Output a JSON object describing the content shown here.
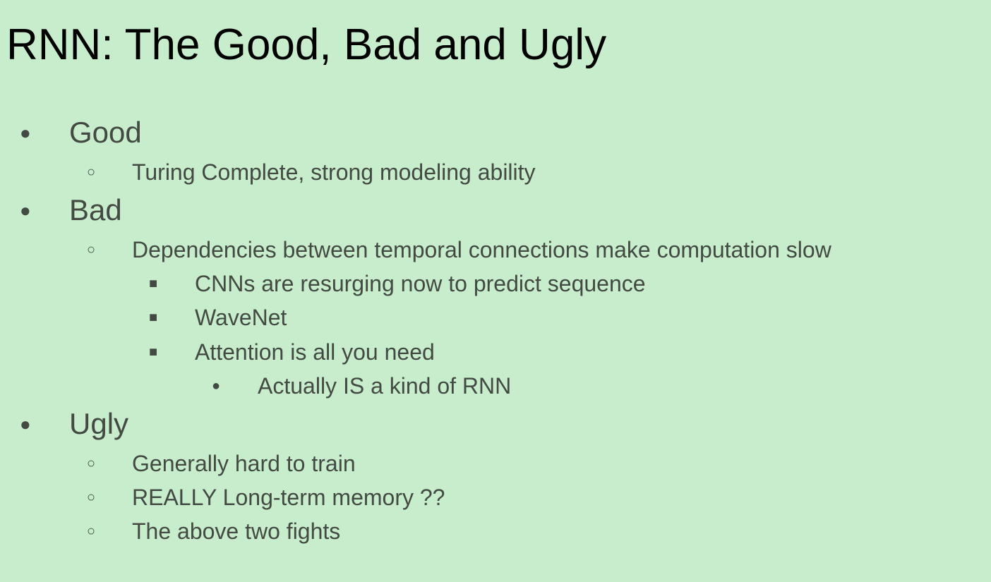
{
  "slide": {
    "title": "RNN: The Good, Bad and Ugly",
    "bullets": {
      "good": {
        "symbol": "●",
        "label": "Good",
        "children": [
          {
            "symbol": "○",
            "label": "Turing Complete, strong modeling ability"
          }
        ]
      },
      "bad": {
        "symbol": "●",
        "label": "Bad",
        "children": [
          {
            "symbol": "○",
            "label": "Dependencies between temporal connections make computation slow",
            "children": [
              {
                "symbol": "■",
                "label": "CNNs are resurging now to predict sequence"
              },
              {
                "symbol": "■",
                "label": "WaveNet"
              },
              {
                "symbol": "■",
                "label": "Attention is all you need",
                "children": [
                  {
                    "symbol": "●",
                    "label": "Actually IS a kind of RNN"
                  }
                ]
              }
            ]
          }
        ]
      },
      "ugly": {
        "symbol": "●",
        "label": "Ugly",
        "children": [
          {
            "symbol": "○",
            "label": "Generally hard to train"
          },
          {
            "symbol": "○",
            "label": "REALLY Long-term memory ??"
          },
          {
            "symbol": "○",
            "label": "The above two fights"
          }
        ]
      }
    },
    "colors": {
      "background": "#c7edcc",
      "title": "#000000",
      "body_text": "#434a43"
    }
  }
}
